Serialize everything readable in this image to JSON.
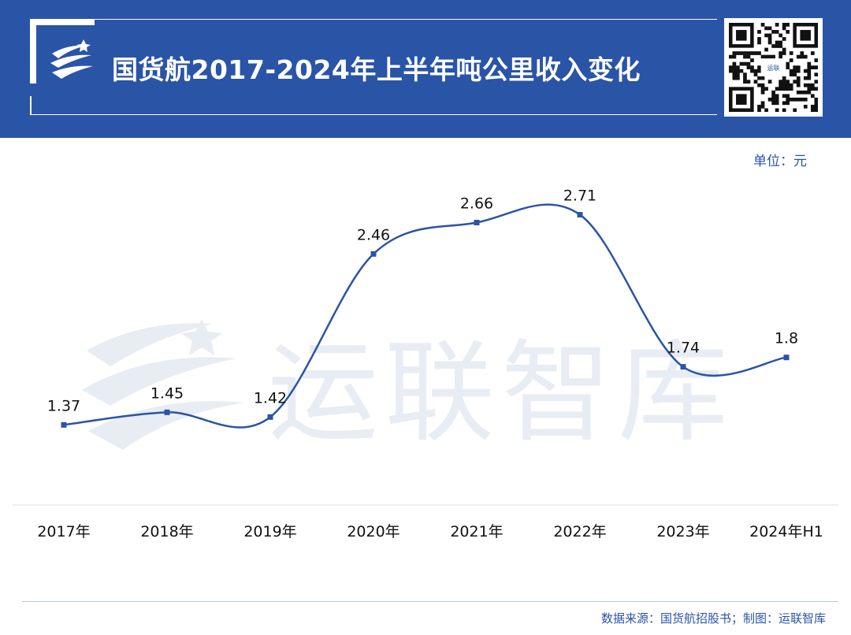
{
  "header": {
    "title": "国货航2017-2024年上半年吨公里收入变化",
    "qr_label": "运联"
  },
  "unit": "单位：元",
  "watermark": "运联智库",
  "source": "数据来源：国货航招股书；制图：运联智库",
  "colors": {
    "brand": "#2a54a6",
    "line": "#2a54a6",
    "watermark": "#e8ecf3"
  },
  "chart_data": {
    "type": "line",
    "categories": [
      "2017年",
      "2018年",
      "2019年",
      "2020年",
      "2021年",
      "2022年",
      "2023年",
      "2024年H1"
    ],
    "series": [
      {
        "values": [
          1.37,
          1.45,
          1.42,
          2.46,
          2.66,
          2.71,
          1.74,
          1.8
        ]
      }
    ],
    "data_labels": [
      "1.37",
      "1.45",
      "1.42",
      "2.46",
      "2.66",
      "2.71",
      "1.74",
      "1.8"
    ],
    "ylim": [
      0,
      3.2
    ],
    "grid": false,
    "smooth": true
  }
}
